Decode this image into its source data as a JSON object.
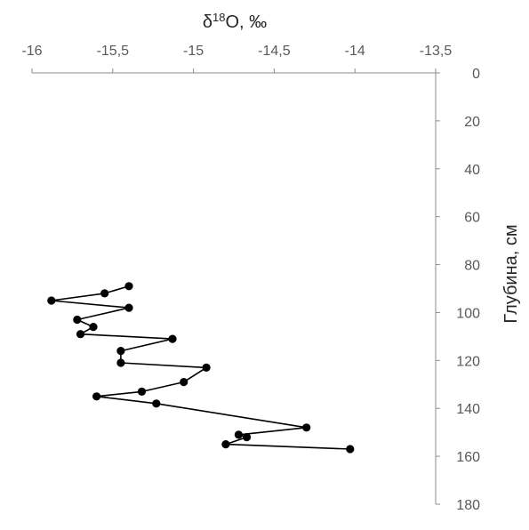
{
  "chart_data": {
    "type": "scatter",
    "title": "",
    "xlabel_main": "δ",
    "xlabel_sup": "18",
    "xlabel_tail": "O, ‰",
    "ylabel": "Глубина, см",
    "xlim": [
      -16,
      -13.5
    ],
    "ylim": [
      0,
      180
    ],
    "y_inverted": true,
    "x_axis_position": "top",
    "y_axis_position": "right",
    "grid": false,
    "legend": "none",
    "x_ticks": [
      -16,
      -15.5,
      -15,
      -14.5,
      -14,
      -13.5
    ],
    "x_tick_labels": [
      "-16",
      "-15,5",
      "-15",
      "-14,5",
      "-14",
      "-13,5"
    ],
    "y_ticks": [
      0,
      20,
      40,
      60,
      80,
      100,
      120,
      140,
      160,
      180
    ],
    "y_tick_labels": [
      "0",
      "20",
      "40",
      "60",
      "80",
      "100",
      "120",
      "140",
      "160",
      "180"
    ],
    "line_color": "#000000",
    "marker_color": "#000000",
    "series": [
      {
        "x": [
          -15.4,
          -15.55,
          -15.88,
          -15.4,
          -15.72,
          -15.62,
          -15.7,
          -15.13,
          -15.45,
          -15.45,
          -14.92,
          -15.06,
          -15.32,
          -15.6,
          -15.23,
          -14.3,
          -14.72,
          -14.67,
          -14.8,
          -14.03
        ],
        "y": [
          89,
          92,
          95,
          98,
          103,
          106,
          109,
          111,
          116,
          121,
          123,
          129,
          133,
          135,
          138,
          148,
          151,
          152,
          155,
          157
        ]
      }
    ]
  }
}
